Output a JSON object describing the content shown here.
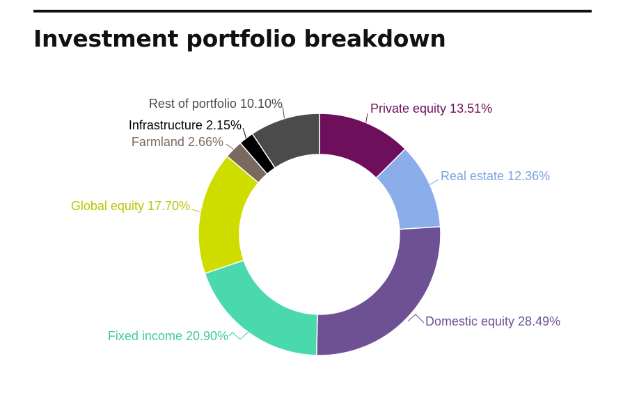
{
  "title": "Investment portfolio breakdown",
  "chart_data": {
    "type": "pie",
    "donut": true,
    "title": "Investment portfolio breakdown",
    "slices": [
      {
        "label": "Private equity",
        "value": 13.51,
        "display": "Private equity 13.51%",
        "color": "#6d0f5b"
      },
      {
        "label": "Real estate",
        "value": 12.36,
        "display": "Real estate 12.36%",
        "color": "#8badea"
      },
      {
        "label": "Domestic equity",
        "value": 28.49,
        "display": "Domestic equity 28.49%",
        "color": "#6e5194"
      },
      {
        "label": "Fixed income",
        "value": 20.9,
        "display": "Fixed income 20.90%",
        "color": "#49d9ad"
      },
      {
        "label": "Global equity",
        "value": 17.7,
        "display": "Global equity 17.70%",
        "color": "#cfdc00"
      },
      {
        "label": "Farmland",
        "value": 2.66,
        "display": "Farmland 2.66%",
        "color": "#7a6a5e"
      },
      {
        "label": "Infrastructure",
        "value": 2.15,
        "display": "Infrastructure 2.15%",
        "color": "#000000"
      },
      {
        "label": "Rest of portfolio",
        "value": 10.1,
        "display": "Rest of portfolio 10.10%",
        "color": "#4b4b4b"
      }
    ],
    "label_colors": [
      "#6d0f5b",
      "#7aa2e3",
      "#6e5194",
      "#3fc9a0",
      "#b9c400",
      "#7a6a5e",
      "#000000",
      "#4b4b4b"
    ]
  }
}
